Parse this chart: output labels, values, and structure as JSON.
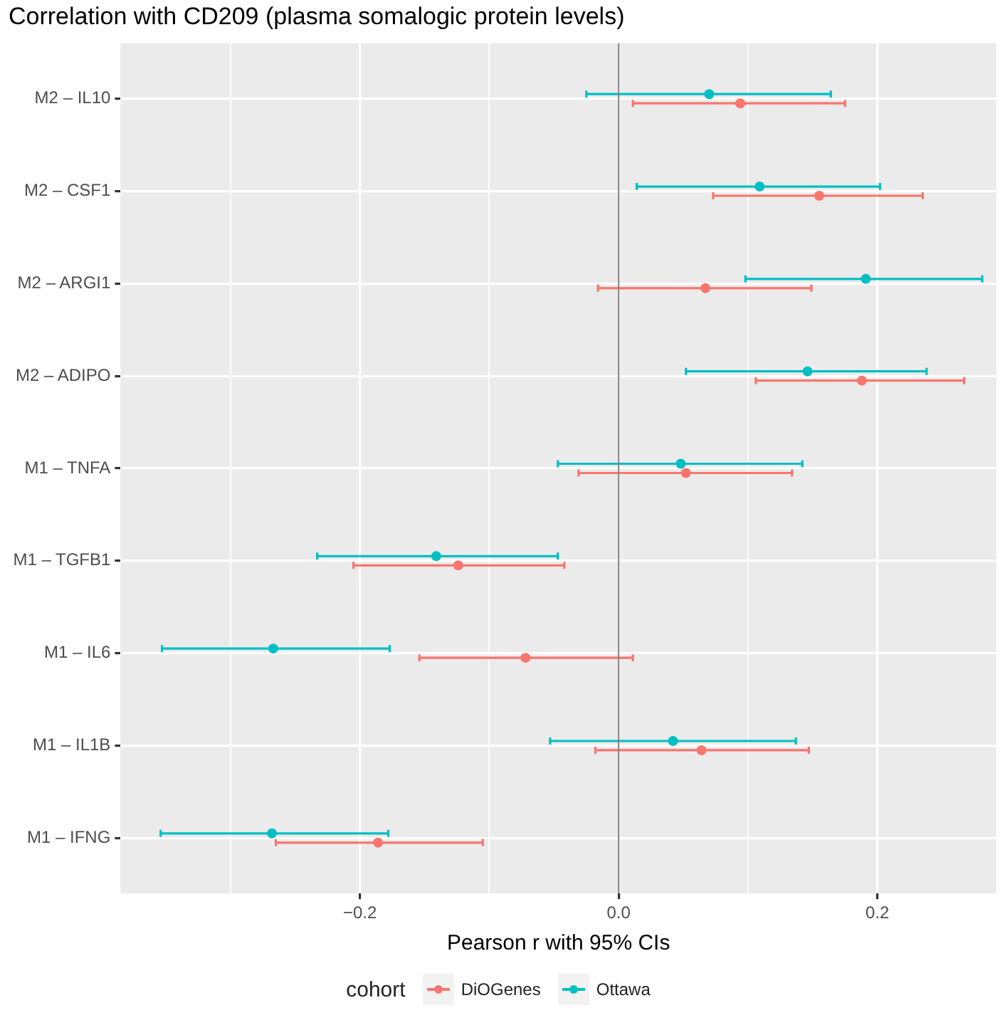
{
  "chart_data": {
    "type": "scatter",
    "orientation": "horizontal",
    "title": "Correlation with CD209 (plasma somalogic protein levels)",
    "xlabel": "Pearson r with 95% CIs",
    "legend_title": "cohort",
    "categories": [
      "M2 – IL10",
      "M2 – CSF1",
      "M2 – ARGI1",
      "M2 – ADIPO",
      "M1 – TNFA",
      "M1 – TGFB1",
      "M1 – IL6",
      "M1 – IL1B",
      "M1 – IFNG"
    ],
    "series": [
      {
        "name": "DiOGenes",
        "color": "#f8766d",
        "values": [
          0.094,
          0.155,
          0.067,
          0.188,
          0.052,
          -0.124,
          -0.072,
          0.064,
          -0.186
        ],
        "errors": [
          [
            0.011,
            0.175
          ],
          [
            0.073,
            0.235
          ],
          [
            -0.016,
            0.149
          ],
          [
            0.106,
            0.267
          ],
          [
            -0.031,
            0.134
          ],
          [
            -0.205,
            -0.042
          ],
          [
            -0.154,
            0.011
          ],
          [
            -0.018,
            0.147
          ],
          [
            -0.265,
            -0.105
          ]
        ]
      },
      {
        "name": "Ottawa",
        "color": "#00bfc4",
        "values": [
          0.07,
          0.109,
          0.191,
          0.146,
          0.048,
          -0.141,
          -0.267,
          0.042,
          -0.268
        ],
        "errors": [
          [
            -0.025,
            0.164
          ],
          [
            0.014,
            0.202
          ],
          [
            0.098,
            0.281
          ],
          [
            0.052,
            0.238
          ],
          [
            -0.047,
            0.142
          ],
          [
            -0.233,
            -0.047
          ],
          [
            -0.353,
            -0.177
          ],
          [
            -0.053,
            0.137
          ],
          [
            -0.354,
            -0.178
          ]
        ]
      }
    ],
    "xlim": [
      -0.385,
      0.292
    ],
    "xticks": [
      {
        "value": -0.3,
        "label": null
      },
      {
        "value": -0.2,
        "label": "−0.2"
      },
      {
        "value": -0.1,
        "label": null
      },
      {
        "value": 0,
        "label": "0.0"
      },
      {
        "value": 0.1,
        "label": null
      },
      {
        "value": 0.2,
        "label": "0.2"
      }
    ],
    "ref_lines": [
      {
        "axis": "x",
        "value": 0,
        "color": "#7f7f7f"
      }
    ],
    "grid": true,
    "legend": "bottom",
    "marker": "circle"
  }
}
